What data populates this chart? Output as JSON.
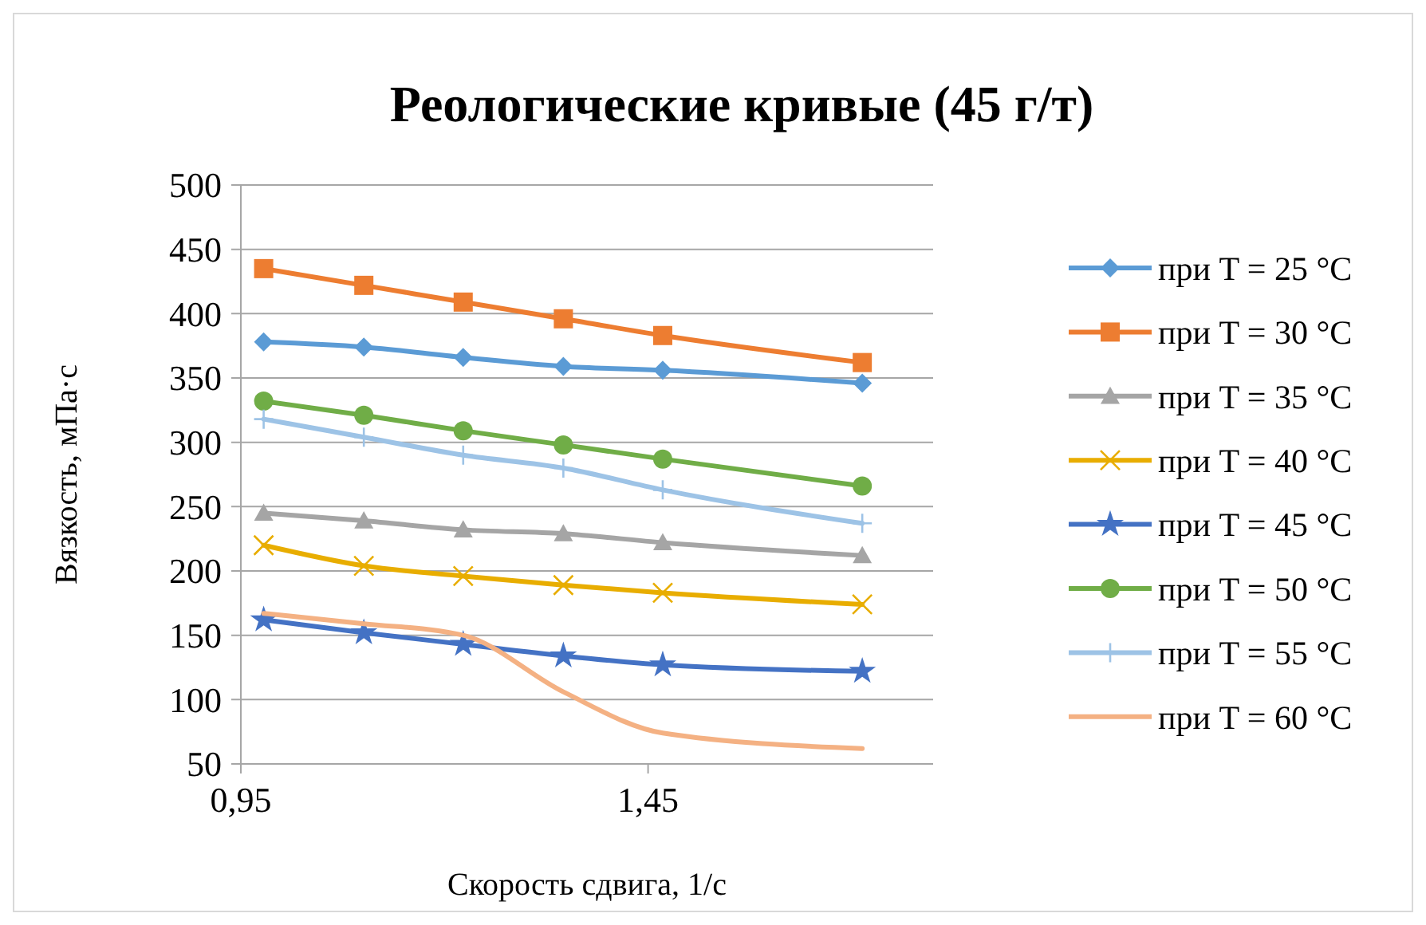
{
  "chart_data": {
    "type": "line",
    "title": "Реологические кривые (45 г/т)",
    "xlabel": "Скорость сдвига, 1/с",
    "ylabel": "Вязкость, мПа·с",
    "x": [
      0.978,
      1.101,
      1.223,
      1.346,
      1.468,
      1.713
    ],
    "xlim": [
      0.95,
      1.8
    ],
    "xticks": [
      {
        "value": 0.95,
        "label": "0,95"
      },
      {
        "value": 1.45,
        "label": "1,45"
      }
    ],
    "ylim": [
      50,
      500
    ],
    "yticks": [
      50,
      100,
      150,
      200,
      250,
      300,
      350,
      400,
      450,
      500
    ],
    "grid": "y",
    "legend": "right",
    "series": [
      {
        "name": "при T = 25 °C",
        "color": "#5b9bd5",
        "marker": "diamond",
        "values": [
          378,
          374,
          366,
          359,
          356,
          346
        ]
      },
      {
        "name": "при T = 30 °C",
        "color": "#ed7d31",
        "marker": "square",
        "values": [
          435,
          422,
          409,
          396,
          383,
          362
        ]
      },
      {
        "name": "при T = 35 °C",
        "color": "#a5a5a5",
        "marker": "triangle",
        "values": [
          245,
          239,
          232,
          229,
          222,
          212
        ]
      },
      {
        "name": "при T = 40 °C",
        "color": "#e8ad00",
        "marker": "cross",
        "values": [
          220,
          204,
          196,
          189,
          183,
          174
        ]
      },
      {
        "name": "при T = 45 °C",
        "color": "#4472c4",
        "marker": "star",
        "values": [
          162,
          152,
          143,
          134,
          127,
          122
        ]
      },
      {
        "name": "при T = 50 °C",
        "color": "#70ad47",
        "marker": "circle",
        "values": [
          332,
          321,
          309,
          298,
          287,
          266
        ]
      },
      {
        "name": "при T = 55 °C",
        "color": "#9dc3e6",
        "marker": "plus",
        "values": [
          318,
          304,
          290,
          280,
          263,
          237
        ]
      },
      {
        "name": "при T = 60 °C",
        "color": "#f4b183",
        "marker": "none",
        "values": [
          167,
          159,
          150,
          106,
          74,
          62
        ]
      }
    ]
  }
}
